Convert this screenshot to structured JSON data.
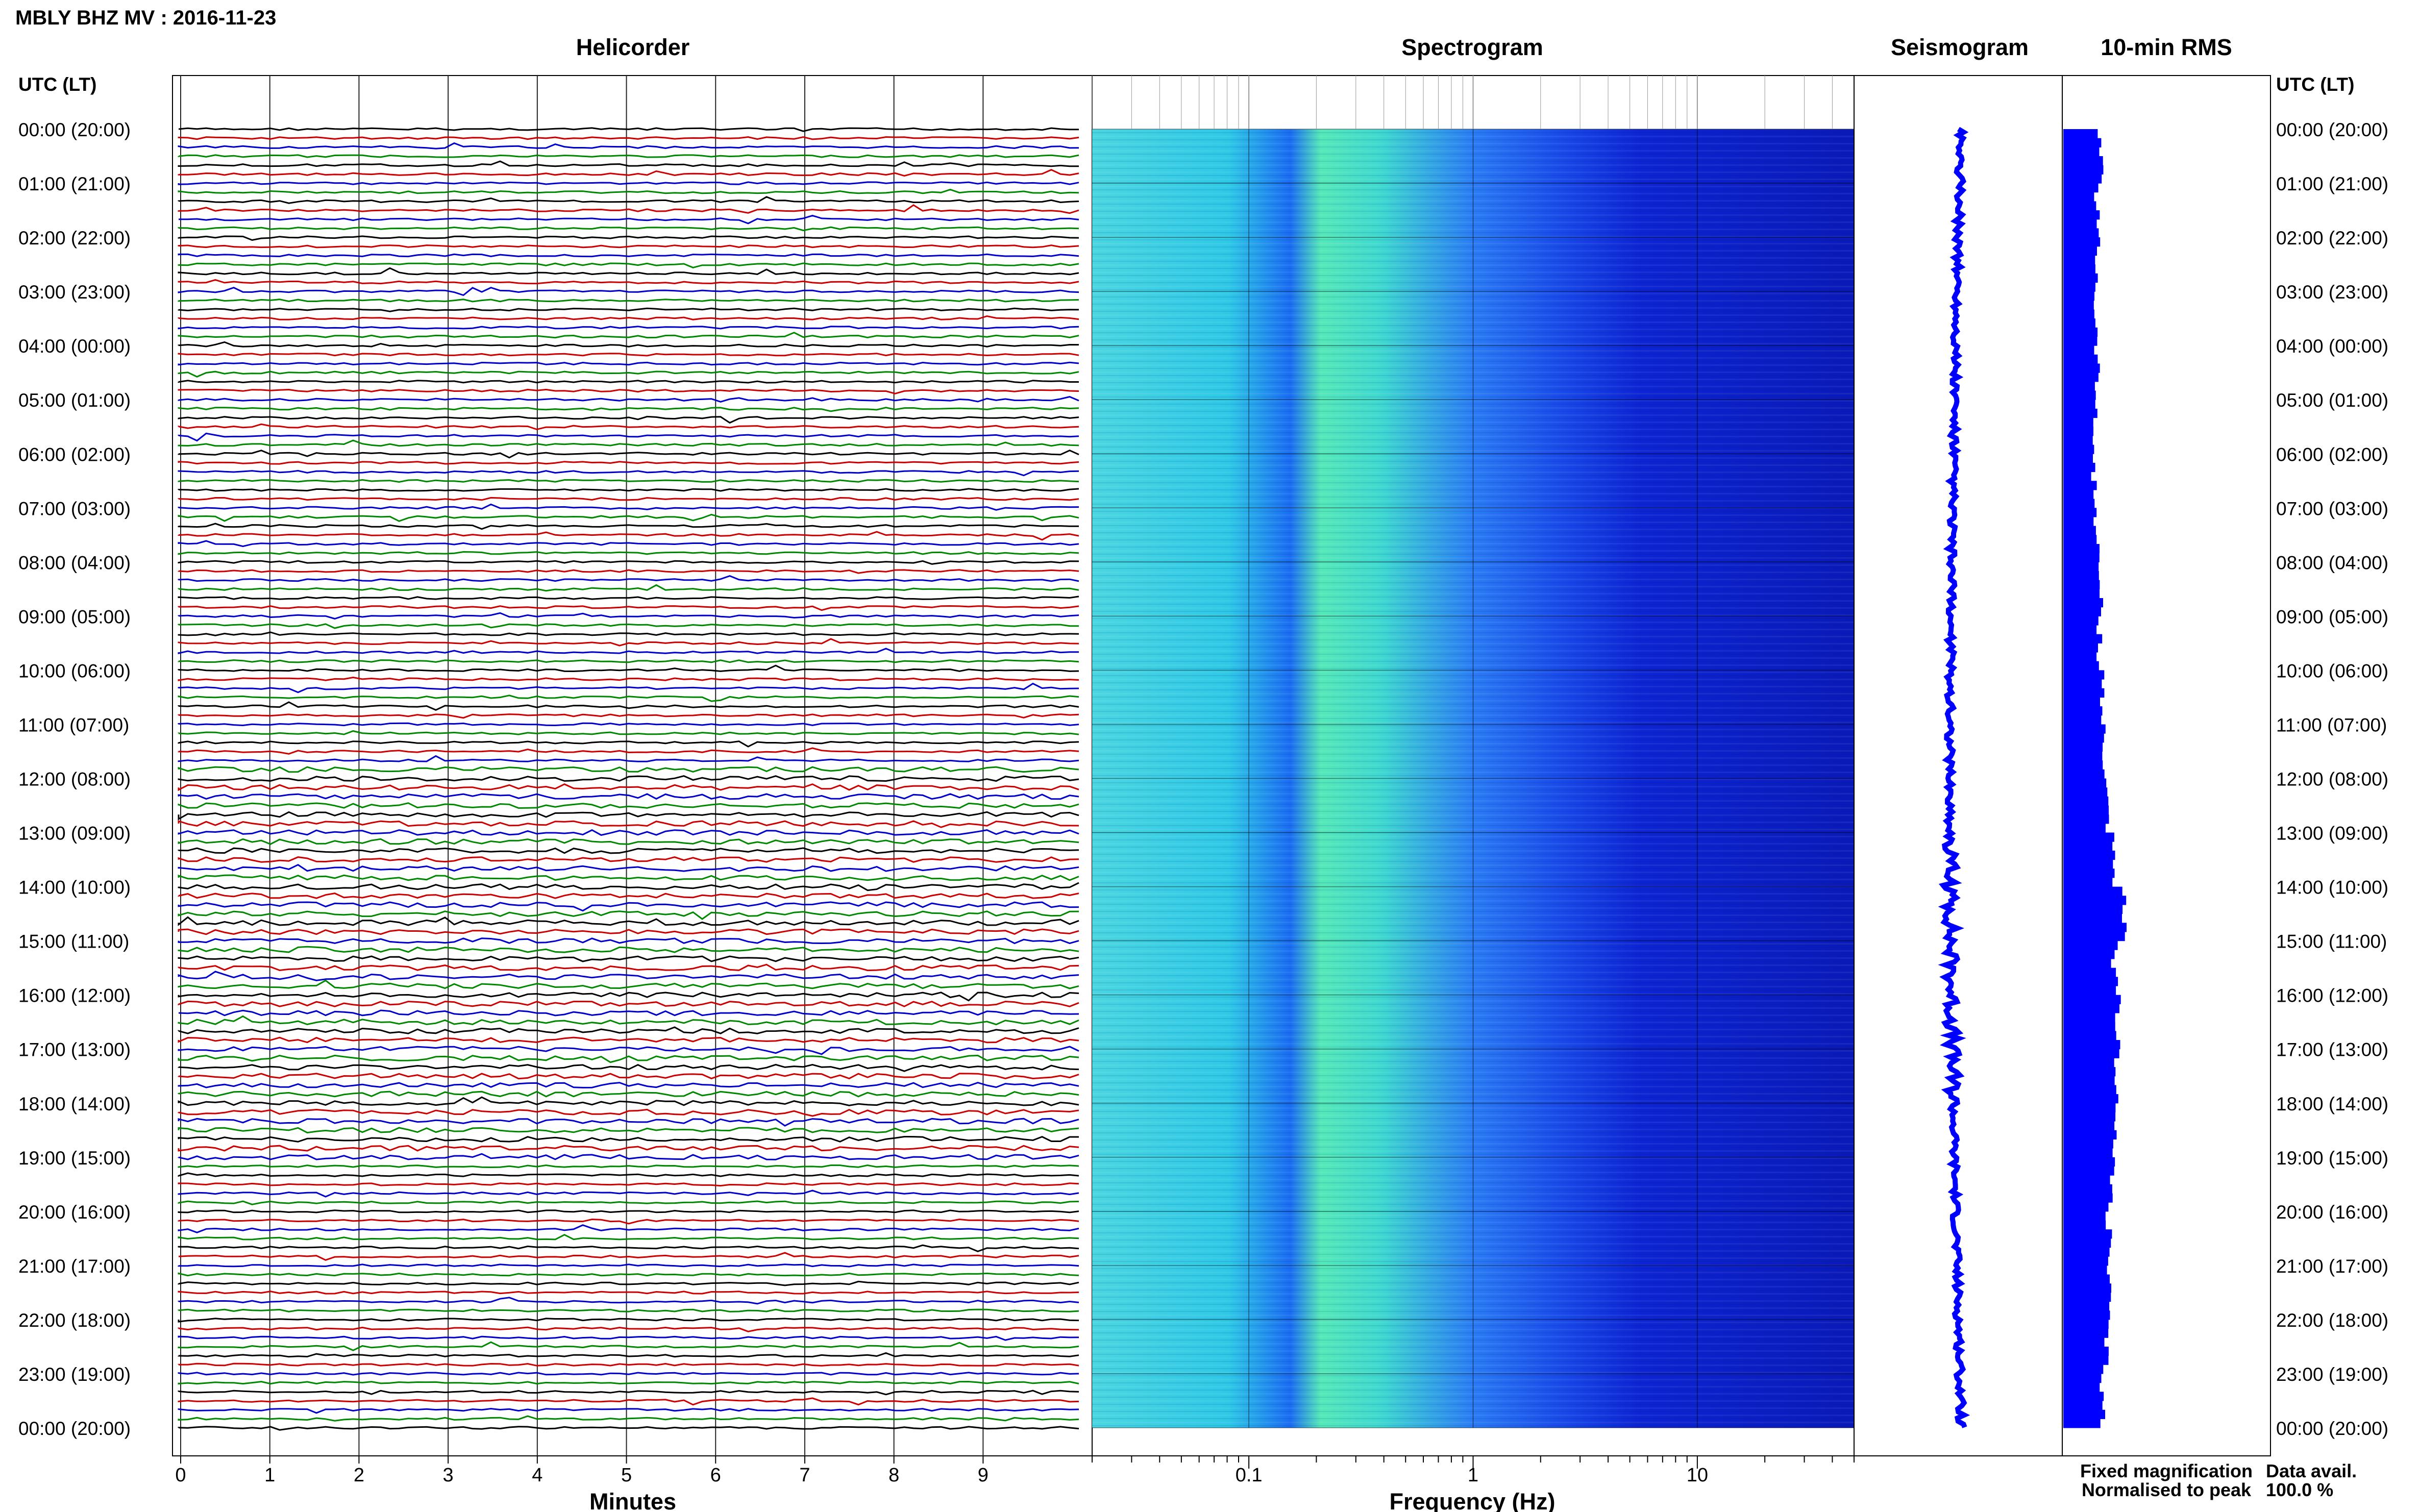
{
  "header": {
    "station_title": "MBLY BHZ MV : 2016-11-23",
    "utc_label_left": "UTC (LT)",
    "utc_label_right": "UTC (LT)"
  },
  "panels": {
    "helicorder": "Helicorder",
    "spectrogram": "Spectrogram",
    "seismogram": "Seismogram",
    "rms": "10-min RMS"
  },
  "hour_labels": [
    "00:00 (20:00)",
    "01:00 (21:00)",
    "02:00 (22:00)",
    "03:00 (23:00)",
    "04:00 (00:00)",
    "05:00 (01:00)",
    "06:00 (02:00)",
    "07:00 (03:00)",
    "08:00 (04:00)",
    "09:00 (05:00)",
    "10:00 (06:00)",
    "11:00 (07:00)",
    "12:00 (08:00)",
    "13:00 (09:00)",
    "14:00 (10:00)",
    "15:00 (11:00)",
    "16:00 (12:00)",
    "17:00 (13:00)",
    "18:00 (14:00)",
    "19:00 (15:00)",
    "20:00 (16:00)",
    "21:00 (17:00)",
    "22:00 (18:00)",
    "23:00 (19:00)",
    "00:00 (20:00)"
  ],
  "helicorder_axis": {
    "xlabel": "Minutes",
    "ticks": [
      "0",
      "1",
      "2",
      "3",
      "4",
      "5",
      "6",
      "7",
      "8",
      "9"
    ],
    "trace_colors": [
      "#000000",
      "#cc0000",
      "#0000cc",
      "#008800"
    ]
  },
  "spectrogram_axis": {
    "xlabel": "Frequency (Hz)",
    "ticks": [
      "0.1",
      "1",
      "10"
    ],
    "scale": "log",
    "xlim": [
      0.02,
      50
    ]
  },
  "legend": {
    "fixed": "Fixed magnification",
    "fixed_color": "#0000ff",
    "normalised": "Normalised to peak",
    "normalised_color": "#ff0000"
  },
  "availability": {
    "label": "Data avail.",
    "value": "100.0 %"
  },
  "chart_data": {
    "type": "heatmap",
    "title": "MBLY BHZ MV : 2016-11-23",
    "rms_10min_series": {
      "name": "10-min RMS",
      "hours": [
        0,
        1,
        2,
        3,
        4,
        5,
        6,
        7,
        8,
        9,
        10,
        11,
        12,
        13,
        14,
        15,
        16,
        17,
        18,
        19,
        20,
        21,
        22,
        23
      ],
      "relative_values": [
        0.55,
        0.5,
        0.5,
        0.48,
        0.5,
        0.45,
        0.45,
        0.5,
        0.55,
        0.55,
        0.6,
        0.6,
        0.7,
        0.75,
        0.95,
        0.8,
        0.85,
        0.85,
        0.8,
        0.75,
        0.7,
        0.7,
        0.65,
        0.6
      ]
    },
    "accent_colors": {
      "spectrogram_high": "#2ef0d6",
      "spectrogram_mid": "#3c8cff",
      "spectrogram_low": "#0a1ec8",
      "rms_bar": "#0000ff"
    }
  }
}
